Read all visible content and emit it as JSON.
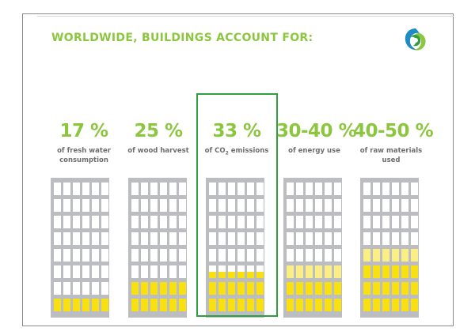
{
  "title": "WORLDWIDE, BUILDINGS ACCOUNT FOR:",
  "logo_icon": "globe-swirl-logo-icon",
  "colors": {
    "green": "#8cc63f",
    "highlight_border": "#2e9e3e",
    "building_gray": "#bcbdc0",
    "window_white": "#ffffff",
    "fill_yellow": "#f9e10f",
    "fill_light_yellow": "#fbee84",
    "text_gray": "#6d6e71"
  },
  "stats": [
    {
      "value": "17 %",
      "label_line1": "of fresh water",
      "label_line2": "consumption",
      "filled_rows": 1,
      "light_rows": 0
    },
    {
      "value": "25 %",
      "label_line1": "of wood harvest",
      "label_line2": "",
      "filled_rows": 2,
      "light_rows": 0
    },
    {
      "value": "33 %",
      "label_pre": "of CO",
      "label_sub": "2",
      "label_post": " emissions",
      "filled_rows": 2.5,
      "light_rows": 0,
      "highlighted": true
    },
    {
      "value": "30-40 %",
      "label_line1": "of energy use",
      "label_line2": "",
      "filled_rows": 2,
      "light_rows": 1
    },
    {
      "value": "40-50 %",
      "label_line1": "of raw materials",
      "label_line2": "used",
      "filled_rows": 3,
      "light_rows": 1
    }
  ]
}
